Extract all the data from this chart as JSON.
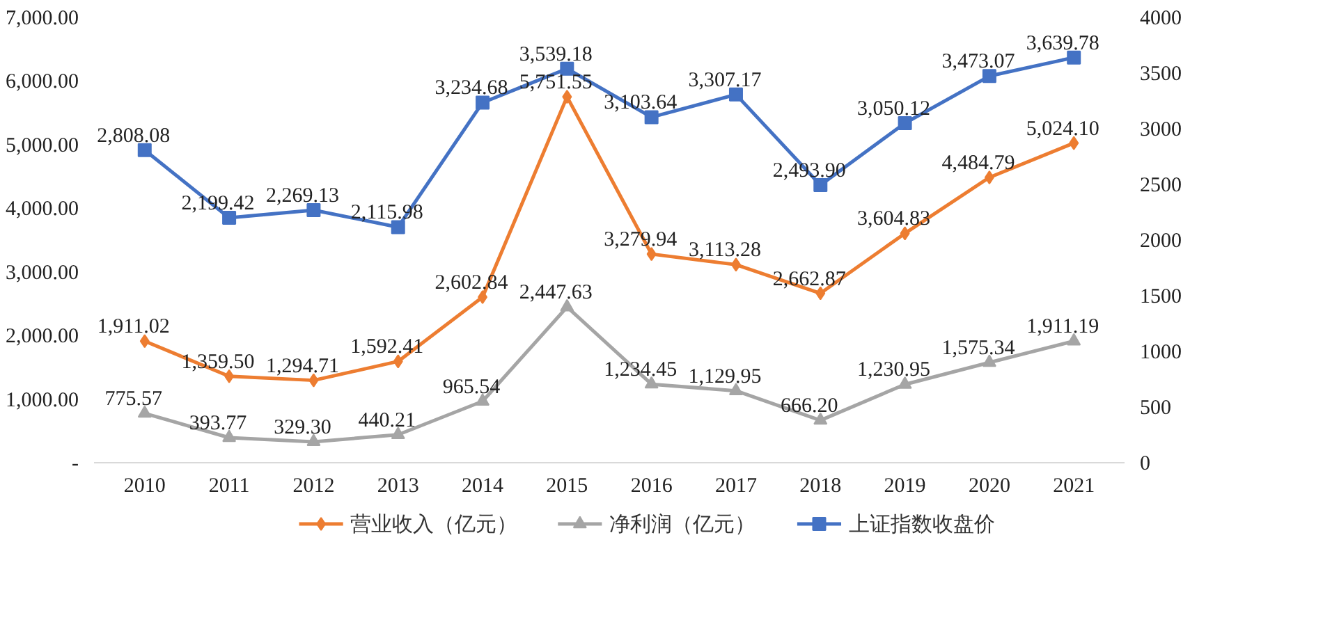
{
  "chart_data": {
    "type": "line",
    "categories": [
      "2010",
      "2011",
      "2012",
      "2013",
      "2014",
      "2015",
      "2016",
      "2017",
      "2018",
      "2019",
      "2020",
      "2021"
    ],
    "ylim": [
      0,
      7000
    ],
    "yticks": [
      {
        "value": 0,
        "label": "-"
      },
      {
        "value": 1000,
        "label": "1,000.00"
      },
      {
        "value": 2000,
        "label": "2,000.00"
      },
      {
        "value": 3000,
        "label": "3,000.00"
      },
      {
        "value": 4000,
        "label": "4,000.00"
      },
      {
        "value": 5000,
        "label": "5,000.00"
      },
      {
        "value": 6000,
        "label": "6,000.00"
      },
      {
        "value": 7000,
        "label": "7,000.00"
      }
    ],
    "y2lim": [
      0,
      4000
    ],
    "y2ticks": [
      0,
      500,
      1000,
      1500,
      2000,
      2500,
      3000,
      3500,
      4000
    ],
    "grid": false,
    "legend": "bottom",
    "line_style": "solid",
    "series": [
      {
        "name": "营业收入（亿元）",
        "color": "#ed7d31",
        "marker": "diamond",
        "values": [
          1911.02,
          1359.5,
          1294.71,
          1592.41,
          2602.84,
          5751.55,
          3279.94,
          3113.28,
          2662.87,
          3604.83,
          4484.79,
          5024.1
        ],
        "value_labels": [
          "1,911.02",
          "1,359.50",
          "1,294.71",
          "1,592.41",
          "2,602.84",
          "5,751.55",
          "3,279.94",
          "3,113.28",
          "2,662.87",
          "3,604.83",
          "4,484.79",
          "5,024.10"
        ]
      },
      {
        "name": "净利润（亿元）",
        "color": "#a5a5a5",
        "marker": "triangle",
        "values": [
          775.57,
          393.77,
          329.3,
          440.21,
          965.54,
          2447.63,
          1234.45,
          1129.95,
          666.2,
          1230.95,
          1575.34,
          1911.19
        ],
        "value_labels": [
          "775.57",
          "393.77",
          "329.30",
          "440.21",
          "965.54",
          "2,447.63",
          "1,234.45",
          "1,129.95",
          "666.20",
          "1,230.95",
          "1,575.34",
          "1,911.19"
        ]
      },
      {
        "name": "上证指数收盘价",
        "color": "#4472c4",
        "marker": "square",
        "axis": "y2",
        "values": [
          2808.08,
          2199.42,
          2269.13,
          2115.98,
          3234.68,
          3539.18,
          3103.64,
          3307.17,
          2493.9,
          3050.12,
          3473.07,
          3639.78
        ],
        "value_labels": [
          "2,808.08",
          "2,199.42",
          "2,269.13",
          "2,115.98",
          "3,234.68",
          "3,539.18",
          "3,103.64",
          "3,307.17",
          "2,493.90",
          "3,050.12",
          "3,473.07",
          "3,639.78"
        ]
      }
    ]
  }
}
